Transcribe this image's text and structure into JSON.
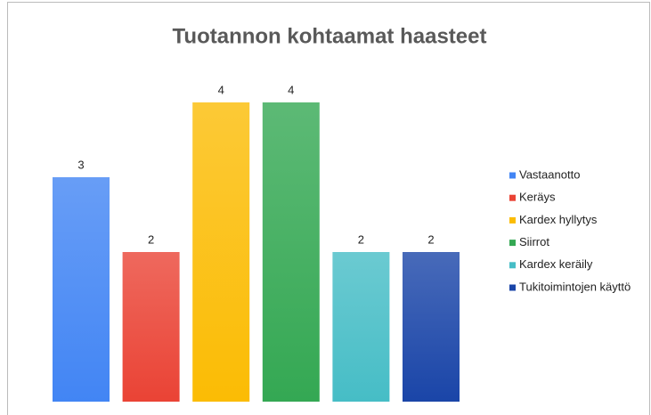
{
  "chart_data": {
    "type": "bar",
    "title": "Tuotannon kohtaamat haasteet",
    "series": [
      {
        "name": "Vastaanotto",
        "color": "#4285f4",
        "values": [
          3
        ]
      },
      {
        "name": "Keräys",
        "color": "#ea4335",
        "values": [
          2
        ]
      },
      {
        "name": "Kardex hyllytys",
        "color": "#fbbc04",
        "values": [
          4
        ]
      },
      {
        "name": "Siirrot",
        "color": "#34a853",
        "values": [
          4
        ]
      },
      {
        "name": "Kardex keräily",
        "color": "#46bdc6",
        "values": [
          2
        ]
      },
      {
        "name": "Tukitoimintojen käyttö",
        "color": "#1a45a8",
        "values": [
          2
        ]
      }
    ],
    "legend": "right"
  }
}
